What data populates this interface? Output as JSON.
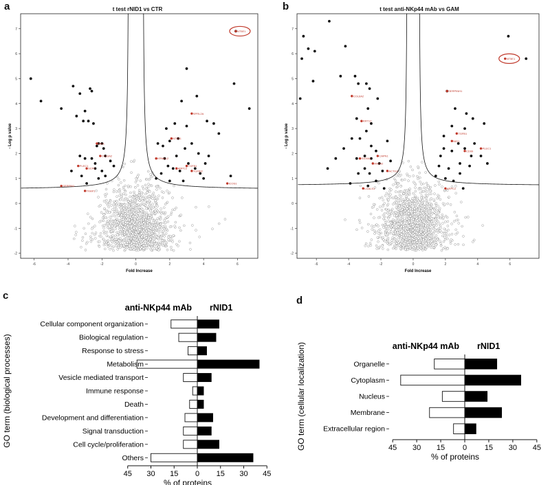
{
  "panels": {
    "a": "a",
    "b": "b",
    "c": "c",
    "d": "d"
  },
  "chart_data": [
    {
      "id": "a",
      "type": "scatter",
      "title": "t test rNID1 vs CTR",
      "xlabel": "Fold Increase",
      "ylabel": "- Log p value",
      "xlim": [
        -6.8,
        7.2
      ],
      "ylim": [
        -2.2,
        7.6
      ],
      "xticks": [
        -6,
        -4,
        -2,
        0,
        2,
        4,
        6
      ],
      "yticks": [
        -2,
        -1,
        0,
        1,
        2,
        3,
        4,
        5,
        6,
        7
      ],
      "threshold_s0": 0.4,
      "threshold_c": 0.55,
      "significant_points": [
        [
          -6.2,
          5.0
        ],
        [
          -5.6,
          4.1
        ],
        [
          -4.4,
          3.8
        ],
        [
          -3.7,
          4.7
        ],
        [
          -3.5,
          3.5
        ],
        [
          -3.3,
          4.4
        ],
        [
          -3.1,
          3.3
        ],
        [
          -3.0,
          3.7
        ],
        [
          -2.8,
          3.3
        ],
        [
          -2.7,
          4.6
        ],
        [
          -2.6,
          4.5
        ],
        [
          -2.5,
          3.2
        ],
        [
          -2.4,
          1.6
        ],
        [
          -2.3,
          2.3
        ],
        [
          -2.2,
          2.4
        ],
        [
          -2.0,
          2.4
        ],
        [
          -1.9,
          2.2
        ],
        [
          -1.8,
          1.9
        ],
        [
          -2.6,
          1.8
        ],
        [
          -3.0,
          1.8
        ],
        [
          -3.3,
          1.9
        ],
        [
          -2.4,
          1.4
        ],
        [
          -2.0,
          1.3
        ],
        [
          -1.5,
          1.7
        ],
        [
          -1.3,
          1.5
        ],
        [
          -3.8,
          1.3
        ],
        [
          -3.2,
          1.1
        ],
        [
          -2.2,
          1.0
        ],
        [
          -1.8,
          1.1
        ],
        [
          -2.9,
          0.8
        ],
        [
          3.0,
          5.4
        ],
        [
          3.6,
          4.3
        ],
        [
          4.2,
          3.3
        ],
        [
          4.6,
          3.2
        ],
        [
          2.7,
          4.1
        ],
        [
          2.3,
          3.2
        ],
        [
          1.8,
          3.0
        ],
        [
          5.8,
          4.8
        ],
        [
          6.7,
          3.8
        ],
        [
          4.9,
          2.8
        ],
        [
          3.0,
          3.1
        ],
        [
          2.5,
          2.6
        ],
        [
          2.0,
          2.5
        ],
        [
          1.3,
          2.4
        ],
        [
          1.6,
          2.3
        ],
        [
          2.9,
          2.2
        ],
        [
          3.3,
          2.4
        ],
        [
          3.7,
          2.0
        ],
        [
          4.1,
          1.6
        ],
        [
          4.3,
          1.9
        ],
        [
          3.5,
          1.4
        ],
        [
          3.1,
          1.6
        ],
        [
          2.6,
          1.3
        ],
        [
          2.2,
          1.4
        ],
        [
          1.9,
          1.5
        ],
        [
          1.5,
          1.2
        ],
        [
          1.7,
          1.8
        ],
        [
          2.4,
          1.9
        ],
        [
          3.8,
          1.2
        ],
        [
          2.8,
          0.9
        ],
        [
          2.0,
          0.9
        ],
        [
          1.2,
          1.0
        ],
        [
          5.9,
          6.9
        ],
        [
          5.6,
          1.1
        ],
        [
          4.0,
          1.0
        ]
      ],
      "labeled_points": [
        {
          "x": 5.9,
          "y": 6.9,
          "label": "NT5E1"
        },
        {
          "x": 3.3,
          "y": 3.6,
          "label": "SPRL2A"
        },
        {
          "x": 2.1,
          "y": 2.6,
          "label": "NT5E1"
        },
        {
          "x": 1.2,
          "y": 1.8,
          "label": "KRMAL2"
        },
        {
          "x": 2.4,
          "y": 1.4,
          "label": "ARPC2"
        },
        {
          "x": 3.0,
          "y": 1.5,
          "label": "TGFB1"
        },
        {
          "x": 3.3,
          "y": 1.3,
          "label": "TGFBI2"
        },
        {
          "x": 5.4,
          "y": 0.8,
          "label": "ICOS1"
        },
        {
          "x": -2.3,
          "y": 2.4,
          "label": "NID1"
        },
        {
          "x": -2.1,
          "y": 1.9,
          "label": "COL6A2"
        },
        {
          "x": -3.4,
          "y": 1.5,
          "label": "PLEC1"
        },
        {
          "x": -2.9,
          "y": 1.4,
          "label": "SCP2"
        },
        {
          "x": -4.4,
          "y": 0.7,
          "label": "SERPIN1"
        },
        {
          "x": -3.0,
          "y": 0.5,
          "label": "TRAP1"
        }
      ],
      "highlighted": {
        "x": 5.9,
        "y": 6.9,
        "label": "NT5E1"
      }
    },
    {
      "id": "b",
      "type": "scatter",
      "title": "t test anti-NKp44 mAb vs GAM",
      "xlabel": "Fold Increase",
      "ylabel": "- Log p value",
      "xlim": [
        -7.2,
        7.8
      ],
      "ylim": [
        -2.2,
        7.6
      ],
      "xticks": [
        -6,
        -4,
        -2,
        0,
        2,
        4,
        6
      ],
      "yticks": [
        -2,
        -1,
        0,
        1,
        2,
        3,
        4,
        5,
        6,
        7
      ],
      "threshold_s0": 0.35,
      "threshold_c": 0.7,
      "significant_points": [
        [
          -6.8,
          6.7
        ],
        [
          -6.5,
          6.2
        ],
        [
          -6.9,
          5.8
        ],
        [
          -6.1,
          6.1
        ],
        [
          -5.2,
          7.3
        ],
        [
          -6.2,
          4.9
        ],
        [
          -7.0,
          4.2
        ],
        [
          -4.2,
          6.3
        ],
        [
          -4.5,
          5.1
        ],
        [
          -3.6,
          5.1
        ],
        [
          -3.4,
          4.8
        ],
        [
          -2.9,
          4.8
        ],
        [
          -2.7,
          4.6
        ],
        [
          -2.2,
          4.2
        ],
        [
          -2.8,
          3.8
        ],
        [
          -3.5,
          3.4
        ],
        [
          -2.6,
          3.2
        ],
        [
          -2.9,
          2.9
        ],
        [
          -3.3,
          2.6
        ],
        [
          -2.6,
          2.3
        ],
        [
          -2.3,
          2.1
        ],
        [
          -3.0,
          1.9
        ],
        [
          -2.6,
          1.8
        ],
        [
          -3.5,
          1.8
        ],
        [
          -2.1,
          1.6
        ],
        [
          -3.0,
          1.4
        ],
        [
          -1.9,
          1.3
        ],
        [
          -2.7,
          1.2
        ],
        [
          -3.4,
          1.2
        ],
        [
          -2.3,
          0.9
        ],
        [
          -3.9,
          0.8
        ],
        [
          -2.8,
          0.7
        ],
        [
          -1.8,
          0.6
        ],
        [
          -5.3,
          1.4
        ],
        [
          -4.8,
          1.8
        ],
        [
          -4.3,
          2.2
        ],
        [
          -1.6,
          2.5
        ],
        [
          -1.4,
          1.7
        ],
        [
          -3.8,
          2.6
        ],
        [
          5.9,
          6.7
        ],
        [
          7.0,
          5.8
        ],
        [
          4.4,
          3.2
        ],
        [
          3.7,
          3.4
        ],
        [
          3.2,
          3.0
        ],
        [
          2.4,
          3.1
        ],
        [
          1.9,
          2.7
        ],
        [
          2.8,
          2.4
        ],
        [
          3.2,
          2.2
        ],
        [
          3.8,
          2.4
        ],
        [
          4.2,
          1.9
        ],
        [
          4.6,
          1.6
        ],
        [
          3.5,
          1.5
        ],
        [
          2.9,
          1.6
        ],
        [
          2.2,
          1.4
        ],
        [
          1.7,
          1.9
        ],
        [
          2.0,
          1.0
        ],
        [
          2.5,
          0.9
        ],
        [
          2.9,
          1.2
        ],
        [
          3.1,
          0.6
        ],
        [
          1.4,
          1.1
        ],
        [
          1.9,
          2.2
        ],
        [
          3.3,
          3.6
        ],
        [
          2.1,
          4.5
        ],
        [
          2.6,
          3.8
        ],
        [
          3.6,
          1.9
        ],
        [
          1.6,
          1.5
        ],
        [
          2.4,
          2.1
        ]
      ],
      "labeled_points": [
        {
          "x": 5.7,
          "y": 5.8,
          "label": "NT5E1"
        },
        {
          "x": 2.1,
          "y": 4.5,
          "label": "SERPINH1"
        },
        {
          "x": 2.4,
          "y": 2.5,
          "label": "NID1"
        },
        {
          "x": 2.7,
          "y": 2.8,
          "label": "TGFB1"
        },
        {
          "x": 3.2,
          "y": 2.1,
          "label": "CD99"
        },
        {
          "x": 4.2,
          "y": 2.2,
          "label": "PLEC1"
        },
        {
          "x": 2.0,
          "y": 0.6,
          "label": "ARPC2"
        },
        {
          "x": -3.8,
          "y": 4.3,
          "label": "COL6A2"
        },
        {
          "x": -3.2,
          "y": 3.3,
          "label": "KRT1C"
        },
        {
          "x": -2.5,
          "y": 1.6,
          "label": "ANXA2"
        },
        {
          "x": -3.3,
          "y": 1.8,
          "label": "S100A4"
        },
        {
          "x": -1.6,
          "y": 1.3,
          "label": "ACTG2"
        },
        {
          "x": -2.2,
          "y": 1.9,
          "label": "CAPN1"
        },
        {
          "x": -3.1,
          "y": 0.6,
          "label": "LGALS1"
        }
      ],
      "highlighted": {
        "x": 5.7,
        "y": 5.8,
        "label": "NT5E1"
      }
    },
    {
      "id": "c",
      "type": "bar",
      "orientation": "horizontal-diverging",
      "ylabel": "GO term (biological processes)",
      "xlabel": "% of proteins",
      "left_series": "anti-NKp44 mAb",
      "right_series": "rNID1",
      "xticks": [
        45,
        30,
        15,
        0,
        15,
        30,
        45
      ],
      "categories": [
        "Cellular component organization",
        "Biological regulation",
        "Response to stress",
        "Metabolism",
        "Vesicle mediated transport",
        "Immune response",
        "Death",
        "Development and differentiation",
        "Signal transduction",
        "Cell cycle/proliferation",
        "Others"
      ],
      "series": [
        {
          "name": "anti-NKp44 mAb",
          "values": [
            17,
            12,
            6,
            39,
            9,
            3,
            5,
            8,
            9,
            9,
            30
          ]
        },
        {
          "name": "rNID1",
          "values": [
            14,
            12,
            6,
            40,
            9,
            4,
            4,
            10,
            9,
            14,
            36
          ]
        }
      ]
    },
    {
      "id": "d",
      "type": "bar",
      "orientation": "horizontal-diverging",
      "ylabel": "GO term (cellular localization)",
      "xlabel": "% of proteins",
      "left_series": "anti-NKp44 mAb",
      "right_series": "rNID1",
      "xticks": [
        45,
        30,
        15,
        0,
        15,
        30,
        45
      ],
      "categories": [
        "Organelle",
        "Cytoplasm",
        "Nucleus",
        "Membrane",
        "Extracellular region"
      ],
      "series": [
        {
          "name": "anti-NKp44 mAb",
          "values": [
            19,
            40,
            14,
            22,
            7
          ]
        },
        {
          "name": "rNID1",
          "values": [
            20,
            35,
            14,
            23,
            7
          ]
        }
      ]
    }
  ]
}
